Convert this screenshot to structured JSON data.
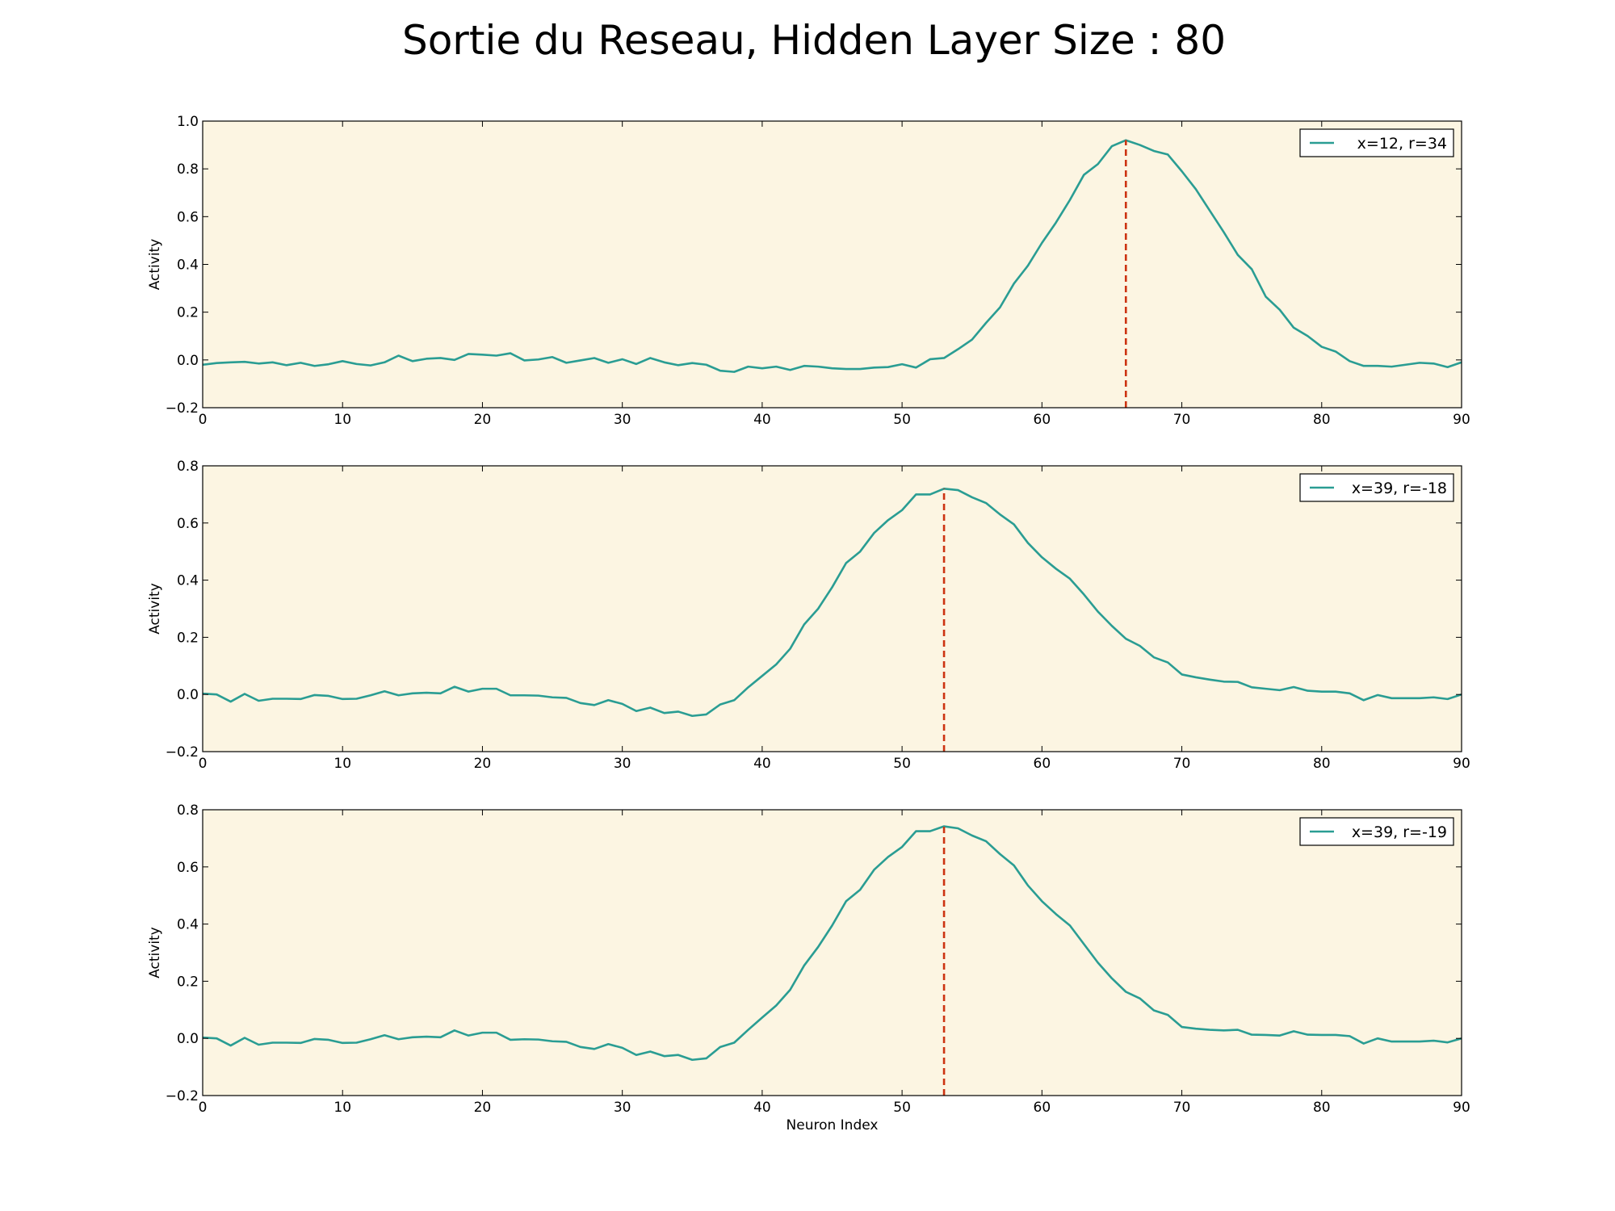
{
  "figure": {
    "title": "Sortie du Reseau, Hidden Layer Size : 80",
    "background_color": "#ffffff",
    "axes_face_color": "#fcf5e2",
    "line_color": "#2a9d93",
    "marker_color": "#cc3311"
  },
  "chart_data": [
    {
      "type": "line",
      "legend": "x=12, r=34",
      "legend_position": "top-right",
      "ylabel": "Activity",
      "xlabel": "",
      "xlim": [
        0,
        90
      ],
      "ylim": [
        -0.2,
        1.0
      ],
      "xticks": [
        0,
        10,
        20,
        30,
        40,
        50,
        60,
        70,
        80,
        90
      ],
      "yticks": [
        -0.2,
        0.0,
        0.2,
        0.4,
        0.6,
        0.8,
        1.0
      ],
      "tick_labels_x": [
        "0",
        "10",
        "20",
        "30",
        "40",
        "50",
        "60",
        "70",
        "80",
        "90"
      ],
      "tick_labels_y": [
        "−0.2",
        "0.0",
        "0.2",
        "0.4",
        "0.6",
        "0.8",
        "1.0"
      ],
      "vline_x": 66,
      "values": [
        -0.02,
        -0.013,
        -0.01,
        -0.008,
        -0.015,
        -0.01,
        -0.022,
        -0.012,
        -0.025,
        -0.018,
        -0.005,
        -0.017,
        -0.023,
        -0.01,
        0.018,
        -0.005,
        0.005,
        0.008,
        0.0,
        0.025,
        0.022,
        0.018,
        0.028,
        -0.002,
        0.002,
        0.012,
        -0.012,
        -0.002,
        0.008,
        -0.012,
        0.003,
        -0.017,
        0.008,
        -0.01,
        -0.022,
        -0.013,
        -0.02,
        -0.045,
        -0.05,
        -0.028,
        -0.035,
        -0.028,
        -0.042,
        -0.025,
        -0.028,
        -0.035,
        -0.038,
        -0.038,
        -0.032,
        -0.03,
        -0.018,
        -0.032,
        0.003,
        0.008,
        0.045,
        0.085,
        0.155,
        0.22,
        0.32,
        0.395,
        0.49,
        0.575,
        0.67,
        0.775,
        0.82,
        0.895,
        0.92,
        0.9,
        0.875,
        0.86,
        0.79,
        0.715,
        0.625,
        0.535,
        0.44,
        0.38,
        0.265,
        0.21,
        0.135,
        0.1,
        0.055,
        0.035,
        -0.005,
        -0.025,
        -0.025,
        -0.028,
        -0.02,
        -0.012,
        -0.015,
        -0.03,
        -0.01
      ]
    },
    {
      "type": "line",
      "legend": "x=39, r=-18",
      "legend_position": "top-right",
      "ylabel": "Activity",
      "xlabel": "",
      "xlim": [
        0,
        90
      ],
      "ylim": [
        -0.2,
        0.8
      ],
      "xticks": [
        0,
        10,
        20,
        30,
        40,
        50,
        60,
        70,
        80,
        90
      ],
      "yticks": [
        -0.2,
        0.0,
        0.2,
        0.4,
        0.6,
        0.8
      ],
      "tick_labels_x": [
        "0",
        "10",
        "20",
        "30",
        "40",
        "50",
        "60",
        "70",
        "80",
        "90"
      ],
      "tick_labels_y": [
        "−0.2",
        "0.0",
        "0.2",
        "0.4",
        "0.6",
        "0.8"
      ],
      "vline_x": 53,
      "values": [
        0.003,
        0.0,
        -0.025,
        0.002,
        -0.022,
        -0.015,
        -0.015,
        -0.016,
        -0.002,
        -0.005,
        -0.016,
        -0.015,
        -0.003,
        0.011,
        -0.003,
        0.004,
        0.006,
        0.004,
        0.027,
        0.01,
        0.02,
        0.02,
        -0.003,
        -0.003,
        -0.004,
        -0.01,
        -0.012,
        -0.03,
        -0.037,
        -0.02,
        -0.033,
        -0.058,
        -0.046,
        -0.065,
        -0.06,
        -0.075,
        -0.07,
        -0.035,
        -0.02,
        0.025,
        0.065,
        0.105,
        0.16,
        0.245,
        0.3,
        0.375,
        0.46,
        0.5,
        0.565,
        0.61,
        0.645,
        0.7,
        0.7,
        0.72,
        0.715,
        0.69,
        0.67,
        0.63,
        0.595,
        0.53,
        0.48,
        0.44,
        0.405,
        0.35,
        0.29,
        0.24,
        0.195,
        0.17,
        0.13,
        0.112,
        0.07,
        0.06,
        0.052,
        0.045,
        0.044,
        0.025,
        0.02,
        0.015,
        0.026,
        0.013,
        0.01,
        0.01,
        0.004,
        -0.02,
        -0.002,
        -0.013,
        -0.013,
        -0.013,
        -0.01,
        -0.016,
        0.0
      ]
    },
    {
      "type": "line",
      "legend": "x=39, r=-19",
      "legend_position": "top-right",
      "ylabel": "Activity",
      "xlabel": "Neuron Index",
      "xlim": [
        0,
        90
      ],
      "ylim": [
        -0.2,
        0.8
      ],
      "xticks": [
        0,
        10,
        20,
        30,
        40,
        50,
        60,
        70,
        80,
        90
      ],
      "yticks": [
        -0.2,
        0.0,
        0.2,
        0.4,
        0.6,
        0.8
      ],
      "tick_labels_x": [
        "0",
        "10",
        "20",
        "30",
        "40",
        "50",
        "60",
        "70",
        "80",
        "90"
      ],
      "tick_labels_y": [
        "−0.2",
        "0.0",
        "0.2",
        "0.4",
        "0.6",
        "0.8"
      ],
      "vline_x": 53,
      "values": [
        0.003,
        0.0,
        -0.025,
        0.002,
        -0.022,
        -0.015,
        -0.015,
        -0.016,
        -0.002,
        -0.005,
        -0.016,
        -0.015,
        -0.003,
        0.011,
        -0.003,
        0.004,
        0.006,
        0.004,
        0.028,
        0.01,
        0.02,
        0.02,
        -0.005,
        -0.003,
        -0.004,
        -0.01,
        -0.012,
        -0.03,
        -0.037,
        -0.02,
        -0.033,
        -0.058,
        -0.046,
        -0.062,
        -0.058,
        -0.075,
        -0.07,
        -0.03,
        -0.015,
        0.03,
        0.073,
        0.115,
        0.17,
        0.255,
        0.32,
        0.395,
        0.48,
        0.52,
        0.59,
        0.635,
        0.67,
        0.725,
        0.725,
        0.742,
        0.735,
        0.71,
        0.69,
        0.645,
        0.605,
        0.535,
        0.48,
        0.435,
        0.395,
        0.33,
        0.265,
        0.21,
        0.163,
        0.14,
        0.098,
        0.082,
        0.04,
        0.034,
        0.03,
        0.028,
        0.03,
        0.013,
        0.012,
        0.01,
        0.025,
        0.013,
        0.012,
        0.012,
        0.008,
        -0.018,
        0.0,
        -0.011,
        -0.011,
        -0.011,
        -0.008,
        -0.014,
        0.0
      ]
    }
  ]
}
